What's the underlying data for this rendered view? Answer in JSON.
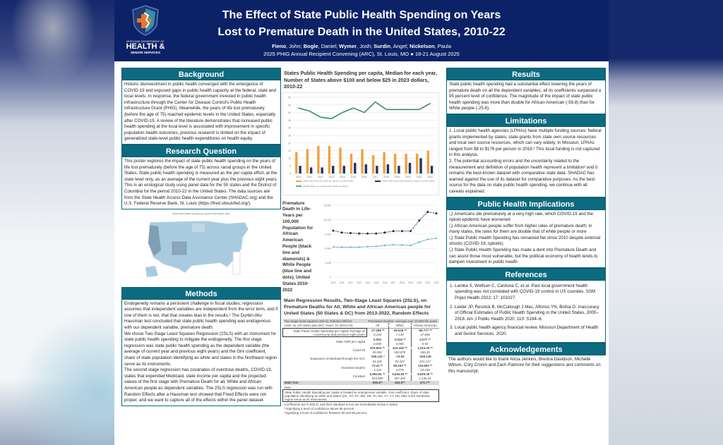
{
  "header": {
    "logo": {
      "org_top": "MISSOURI DEPARTMENT OF",
      "org_main": "HEALTH &",
      "org_sub": "SENIOR SERVICES"
    },
    "title_line1": "The Effect of State Public Health Spending on Years",
    "title_line2": "Lost to Premature Death in the United States, 2010-22",
    "authors": [
      {
        "last": "Fieno",
        "first": "John"
      },
      {
        "last": "Bogle",
        "first": "Daniel"
      },
      {
        "last": "Wymer",
        "first": "Josh"
      },
      {
        "last": "Surdin",
        "first": "Angel"
      },
      {
        "last": "Nickelson",
        "first": "Paula"
      }
    ],
    "event": "2025 PHIG Annual Recipient Convening (ARC), St. Louis, MO",
    "dates": "18-21 August 2025"
  },
  "background": {
    "heading": "Background",
    "text": "Historic disinvestment in public health converged with the emergence of COVID-19 and exposed gaps in public health capacity at the federal, state and local levels. In response, the federal government invested in public health infrastructure through the Center for Disease Control's Public Health Infrastructure Grant (PHIG). Meanwhile, the years of life lost prematurely (before the age of 75) reached epidemic levels in the United States, especially after COVID-19. A review of the literature demonstrates that increased public health spending at the local level is associated with improvement in specific population health outcomes, previous research is limited on the impact of generalized state-level public health expenditures on health equity."
  },
  "research_question": {
    "heading": "Research Question",
    "text": "This poster explores the impact of state public health spending on the years of life lost prematurely (before the age of 75) across racial groups in the United States. State public health spending is measured as the per capita effort, at the state level only, as an average of the current year plus the previous eight years. This is an ecological study using panel data for the 50 states and the District of Columbia for the period 2010-22 in the United States.  The data sources are from the State Health Access Data Assistance Center (SHADAC.org) and the U.S. Federal Reserve Bank, St. Louis (https://fred.stlouisfed.org/)."
  },
  "map": {
    "title": "State Public Health Spending per capita, United States, 2022"
  },
  "methods": {
    "heading": "Methods",
    "paragraphs": [
      "Endogeneity remains a persistent challenge in fiscal studies; regression assumes that independent variables are independent from the error term, and if one of them is not, that that creates bias in the results.¹ The Durbin-Wu-Hausman test concluded that state public health spending was endogenous with our dependent variable, premature death.",
      "We chose Two-Stage Least Squares Regression (2SLS) with an instrument for state public health spending to mitigate the endogeneity. The first stage regression was state public health spending as the dependent variable (the average of current year and previous eight years) and the Gini coefficient, share of state population identifying as white and states in the Northeast region serve as its instruments.",
      "The second stage regression has covariates of overdose deaths, COVID-19, states that expended Medicaid, state income per capita and the projected values of the first stage with Premature Death for all, White and African American people as dependent variables. The 2SLS regression was run with Random Effects after a Hausman test showed that Fixed Effects were not proper, and we want to capture all of the effects within the panel dataset."
    ]
  },
  "chart_data": [
    {
      "type": "bar",
      "title": "States Public Health Spending per capita, Median for each year, Number of States above $100 and below $25 in 2023 dollars, 2010-22",
      "categories": [
        "2010",
        "2011",
        "2012",
        "2013",
        "2014",
        "2015",
        "2016",
        "2017",
        "2018",
        "2019",
        "2020",
        "2021",
        "2022"
      ],
      "series": [
        {
          "name": "States spent less than $25 per capita on public health",
          "type": "bar",
          "color": "#f4a03c",
          "values": [
            14,
            16,
            18,
            18,
            17,
            13,
            16,
            12,
            14,
            13,
            13,
            13,
            15
          ]
        },
        {
          "name": "States spent more than $100 per capita on public health",
          "type": "bar",
          "color": "#1f3566",
          "values": [
            5,
            4,
            4,
            5,
            5,
            7,
            6,
            5,
            6,
            5,
            7,
            10,
            5
          ]
        },
        {
          "name": "Median State, per capita public health spending",
          "type": "line",
          "color": "#3f8a5a",
          "values": [
            43,
            41,
            37,
            36,
            40,
            43,
            40,
            47,
            42,
            42,
            42,
            42,
            46
          ]
        }
      ],
      "yticks": [
        0,
        5,
        10,
        15,
        20,
        25,
        30,
        35,
        40,
        45,
        50
      ],
      "ylim": [
        0,
        50
      ],
      "grid": true,
      "legend_position": "bottom"
    },
    {
      "type": "line",
      "title": "Premature Death in Life-Years per 100,000 Population for African American People (black line and diamonds) & White People (blue line and dots), United States 2010-2022",
      "categories": [
        "2010",
        "2011",
        "2012",
        "2013",
        "2014",
        "2015",
        "2016",
        "2017",
        "2018",
        "2019",
        "2020",
        "2021",
        "2022"
      ],
      "series": [
        {
          "name": "African American",
          "color": "#1a2040",
          "style": "dashed-diamonds",
          "values": [
            9700,
            9300,
            9200,
            9100,
            9100,
            9100,
            9300,
            9600,
            9600,
            9600,
            11800,
            13600,
            13300
          ]
        },
        {
          "name": "White",
          "color": "#6aaed0",
          "style": "dots",
          "values": [
            6300,
            6250,
            6250,
            6250,
            6350,
            6450,
            6600,
            6750,
            6700,
            6600,
            7300,
            7900,
            8100
          ]
        }
      ],
      "yticks": [
        0,
        3000,
        6000,
        9000,
        12000,
        15000
      ],
      "ytick_labels": [
        "0",
        "3,000",
        "6,000",
        "9,000",
        "12,000",
        "15,000"
      ],
      "ylim": [
        0,
        15000
      ],
      "grid": true
    }
  ],
  "regression": {
    "title": "Main Regression Results, Two-Stage Least Squares (2SLS), on Premature Deaths for All, White and African American people for United States (50 States & DC) from 2013-2022, Random Effects",
    "header_left": "Two-stage least squares (2SLS), Random Effects",
    "header_right": "Premature Deaths- Average over 10,000 life years",
    "units": "Units: 51 (All states plus DC); Years: 10 (2013-22)",
    "columns": [
      "All",
      "White",
      "African American"
    ],
    "rows": [
      {
        "label": "State Public Health Spending per capita–Average of current year and previous eight years",
        "coef": [
          "-27.288 **",
          "-25.616 **",
          "-59.777 **"
        ],
        "se": [
          "8.334",
          "7.144",
          "17.808"
        ]
      },
      {
        "label": "State GDP per capita",
        "coef": [
          "0.003",
          "-0.022 **",
          "0.077 **"
        ],
        "se": [
          "0.008",
          "0.006",
          "0.02"
        ]
      },
      {
        "label": "Covid-19",
        "coef": [
          "876.802 **",
          "415.449 **",
          "1,223.20 **"
        ],
        "se": [
          "95.981",
          "100.878",
          "246.35"
        ]
      },
      {
        "label": "Expansion of Medicaid through the ACA",
        "coef": [
          "-156.141 *",
          "-73.93",
          "-205.149"
        ],
        "se": [
          "81.322",
          "93.437",
          "231.217"
        ]
      },
      {
        "label": "Overdose Deaths",
        "coef": [
          "73.41 **",
          "69.163 **",
          "116.563 **"
        ],
        "se": [
          "4.119",
          "4.079",
          "10.108"
        ]
      },
      {
        "label": "Constant",
        "coef": [
          "6,964.81 **",
          "5,644.93 **",
          "9,629.26 **"
        ],
        "se": [
          "523.809",
          "457.163",
          "1,138.22"
        ]
      }
    ],
    "wald": {
      "label": "Wald Test",
      "values": [
        "936.4**",
        "463.0**",
        "471.7**"
      ]
    },
    "notes_label": "Note:",
    "note_box": "State Public Health Spending per capita is treated as endogenous variable. Gini coefficient, share of state population identifying as white and states (DC, NY, PA, MD, DE, RI, MA, CT, VT, NH, ME) in the Northeast region serve as its instruments.",
    "note_bold": "Coefficients are in BOLD, and their standard errors are immediately below in italics.",
    "sig1": "**Signifying a level of confidence above 95 percent",
    "sig2": "*Signifying a level of confidence between 90 and 95 percent"
  },
  "results": {
    "heading": "Results",
    "text": "State public health spending had a substantial effect lowering the years of premature death on all the dependent variables; all its coefficients surpassed a 95 percent level of confidence. The magnitude of the impact of state public health spending was more than double for African American (-59.8) than for White people (-25.6)."
  },
  "limitations": {
    "heading": "Limitations",
    "items": [
      "1. Local public health agencies (LPHAs) have multiple funding sources: federal grants implemented by states, state grants from state own source resources and local own source resources, which can vary widely. In Missouri, LPHAs ranged from $8 to $176 per person in 2018.² This local funding is not captured in this analysis.",
      "2. The potential accounting errors and the uncertainty related to the measurement and definition of population health represent a limitation³ and it remains the best-known dataset with comparative state data. SHADAC has warned against the use of its dataset for comparative purposes. As the best source for the data on state public health spending, we continue with all caveats explained."
    ]
  },
  "implications": {
    "heading": "Public Health Implications",
    "items": [
      "Americans die prematurely at a very high rate, which COVID-19 and the opioid epidemic have worsened",
      "African American people suffer from higher rates of premature death; in many states, the rates for them are double that of white people or more",
      "State Public Health Spending has remained flat since 2010 despite external shocks (COVID-19, opioids)",
      "State Public Health Spending has made a dent into Premature Death and can assist those most vulnerable, but the political economy of health tends to dampen investment in public health"
    ]
  },
  "references": {
    "heading": "References",
    "items": [
      "1. Lamba S, Wolfson C, Cardona C, et al. Past local government health spending was not correlated with COVID-19 control in US counties. SSM Popul Health 2022; 17: 101027.",
      "2. Leider JP, Resnick B, McCullough J Mac, Alfonso YN, Bishai D. Inaccuracy of Official Estimates of Public Health Spending in the United States, 2000–2018. Am J Public Health 2020; 110: S194–6.",
      "3. Local public health agency financial review. Missouri Department of Health and Senior Services. 2020."
    ]
  },
  "acknowledgements": {
    "heading": "Acknowledgements",
    "text": "The authors would like to thank Alicia Jenkins, Brenna Davidson, Michelle Wilson, Cory Cronin and Zach Palmore for their suggestions and comments on this manuscript."
  }
}
